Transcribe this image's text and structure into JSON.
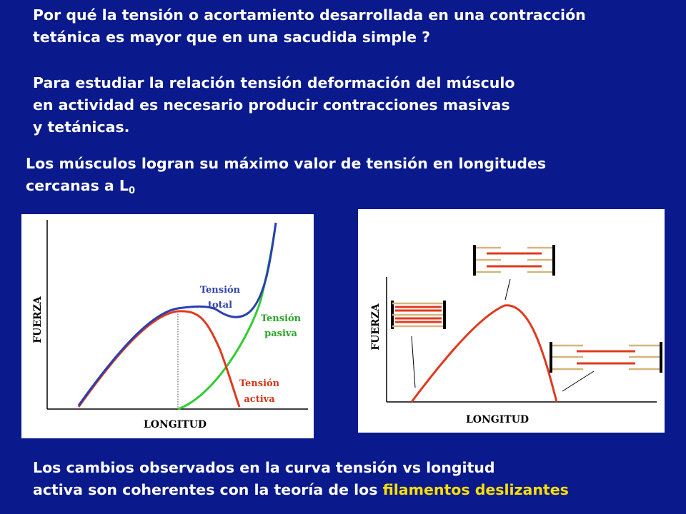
{
  "question": {
    "line1": "Por qué la tensión o acortamiento desarrollada en una contracción",
    "line2": "tetánica es mayor que en una sacudida simple ?"
  },
  "study": {
    "line1": "Para estudiar la relación tensión deformación  del músculo",
    "line2": "en  actividad es necesario producir contracciones masivas",
    "line3": "y tetánicas."
  },
  "max_tension": {
    "line1": "Los músculos logran su máximo valor de tensión en longitudes",
    "line2_prefix": "cercanas a L",
    "line2_sub": "0"
  },
  "left_diagram": {
    "ylabel": "FUERZA",
    "xlabel": "LONGITUD",
    "total_label_1": "Tensión",
    "total_label_2": "total",
    "passive_label_1": "Tensión",
    "passive_label_2": "pasiva",
    "active_label_1": "Tensión",
    "active_label_2": "activa",
    "colors": {
      "total": "#2a3fb0",
      "passive": "#33cc33",
      "active": "#e03a1e",
      "label_total": "#3344aa",
      "label_passive": "#2aa52a",
      "label_active": "#d4361a"
    }
  },
  "right_diagram": {
    "ylabel": "FUERZA",
    "xlabel": "LONGITUD",
    "colors": {
      "curve": "#e03a1e",
      "thin_filament": "#d4b67a",
      "thick_filament": "#e03a1e"
    }
  },
  "footer": {
    "line1": "Los cambios  observados en la curva tensión vs longitud",
    "line2_prefix": "activa son coherentes con la teoría de los ",
    "line2_highlight": "filamentos deslizantes",
    "highlight_color": "#ffe000"
  }
}
